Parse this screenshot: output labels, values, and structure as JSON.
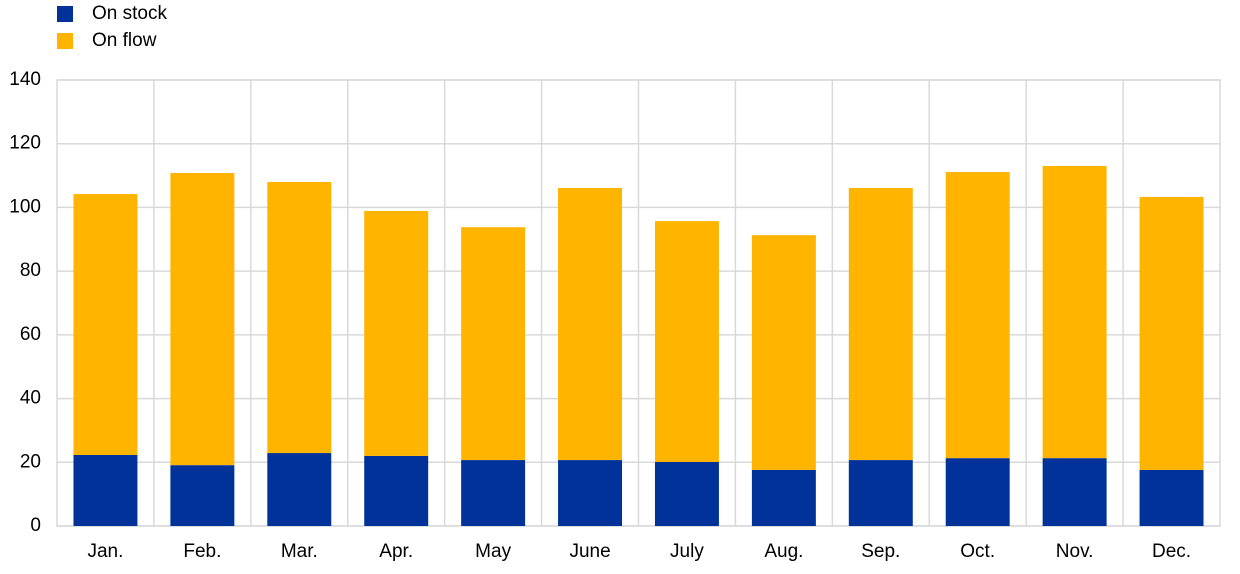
{
  "chart_data": {
    "type": "stacked_bar",
    "categories": [
      "Jan.",
      "Feb.",
      "Mar.",
      "Apr.",
      "May",
      "June",
      "July",
      "Aug.",
      "Sep.",
      "Oct.",
      "Nov.",
      "Dec."
    ],
    "series": [
      {
        "name": "On stock",
        "color": "#003299",
        "values": [
          22.3,
          19.1,
          22.9,
          22,
          20.7,
          20.7,
          20.1,
          17.6,
          20.7,
          21.3,
          21.3,
          17.6
        ]
      },
      {
        "name": "On flow",
        "color": "#ffb400",
        "values": [
          81.9,
          91.7,
          85.1,
          76.9,
          73.1,
          85.4,
          75.6,
          73.7,
          85.4,
          89.8,
          91.7,
          85.7
        ]
      }
    ],
    "ylim": [
      0,
      140
    ],
    "yticks": [
      0,
      20,
      40,
      60,
      80,
      100,
      120,
      140
    ],
    "grid": true,
    "legend": "top-left"
  }
}
